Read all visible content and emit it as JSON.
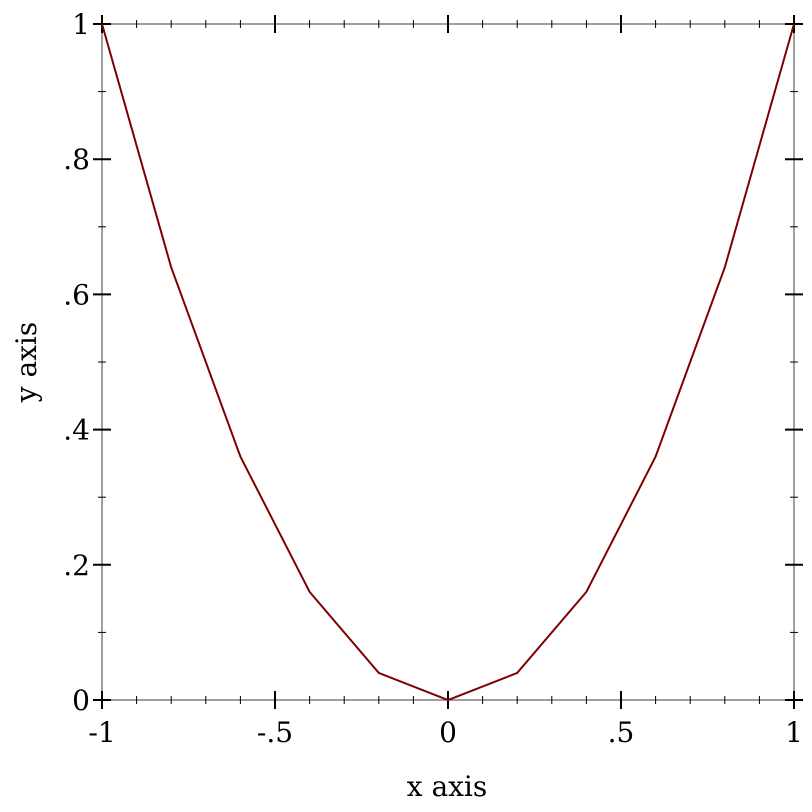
{
  "chart_data": {
    "type": "line",
    "title": "",
    "xlabel": "x axis",
    "ylabel": "y axis",
    "xlim": [
      -1,
      1
    ],
    "ylim": [
      0,
      1
    ],
    "grid": false,
    "x_ticks": [
      {
        "value": -1,
        "label": "-1"
      },
      {
        "value": -0.5,
        "label": "-.5"
      },
      {
        "value": 0,
        "label": "0"
      },
      {
        "value": 0.5,
        "label": ".5"
      },
      {
        "value": 1,
        "label": "1"
      }
    ],
    "y_ticks": [
      {
        "value": 0,
        "label": "0"
      },
      {
        "value": 0.2,
        "label": ".2"
      },
      {
        "value": 0.4,
        "label": ".4"
      },
      {
        "value": 0.6,
        "label": ".6"
      },
      {
        "value": 0.8,
        "label": ".8"
      },
      {
        "value": 1,
        "label": "1"
      }
    ],
    "series": [
      {
        "color": "#800000",
        "x": [
          -1,
          -0.8,
          -0.6,
          -0.4,
          -0.2,
          0,
          0.2,
          0.4,
          0.6,
          0.8,
          1
        ],
        "y": [
          1,
          0.64,
          0.36,
          0.16,
          0.04,
          0,
          0.04,
          0.16,
          0.36,
          0.64,
          1
        ]
      }
    ]
  }
}
